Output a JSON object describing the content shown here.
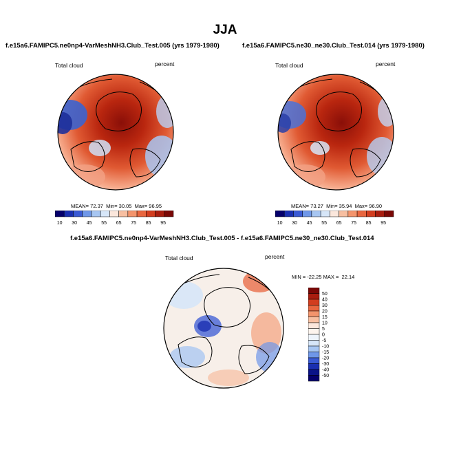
{
  "page": {
    "title": "JJA"
  },
  "panels": [
    {
      "title": "f.e15a6.FAMIPC5.ne0np4-VarMeshNH3.Club_Test.005 (yrs 1979-1980)",
      "left_label": "Total cloud",
      "right_label": "percent",
      "stats": {
        "mean_label": "MEAN=",
        "mean": "72.37",
        "min_label": "Min=",
        "min": "30.05",
        "max_label": "Max=",
        "max": "96.95"
      }
    },
    {
      "title": "f.e15a6.FAMIPC5.ne30_ne30.Club_Test.014 (yrs 1979-1980)",
      "left_label": "Total cloud",
      "right_label": "percent",
      "stats": {
        "mean_label": "MEAN=",
        "mean": "73.27",
        "min_label": "Min=",
        "min": "35.94",
        "max_label": "Max=",
        "max": "96.90"
      }
    },
    {
      "title": "f.e15a6.FAMIPC5.ne0np4-VarMeshNH3.Club_Test.005 - f.e15a6.FAMIPC5.ne30_ne30.Club_Test.014",
      "left_label": "Total cloud",
      "right_label": "percent",
      "stats_text": "MIN = -22.25 MAX =  22.14"
    }
  ],
  "chart_data": [
    {
      "type": "heatmap",
      "title": "f.e15a6.FAMIPC5.ne0np4-VarMeshNH3.Club_Test.005 (yrs 1979-1980)",
      "variable": "Total cloud",
      "units": "percent",
      "projection": "north polar stereographic",
      "colorbar": {
        "orientation": "horizontal",
        "tick_labels": [
          "10",
          "30",
          "45",
          "55",
          "65",
          "75",
          "85",
          "95"
        ],
        "colors": [
          "#05006b",
          "#1a2fb0",
          "#3a5ad4",
          "#6f97e8",
          "#a7c6f2",
          "#d6e6f8",
          "#fbe7dc",
          "#f7bfa1",
          "#f3946c",
          "#e8663f",
          "#d23d1f",
          "#a81d0f",
          "#7a0806"
        ]
      },
      "mean": 72.37,
      "min": 30.05,
      "max": 96.95
    },
    {
      "type": "heatmap",
      "title": "f.e15a6.FAMIPC5.ne30_ne30.Club_Test.014 (yrs 1979-1980)",
      "variable": "Total cloud",
      "units": "percent",
      "projection": "north polar stereographic",
      "colorbar": {
        "orientation": "horizontal",
        "tick_labels": [
          "10",
          "30",
          "45",
          "55",
          "65",
          "75",
          "85",
          "95"
        ],
        "colors": [
          "#05006b",
          "#1a2fb0",
          "#3a5ad4",
          "#6f97e8",
          "#a7c6f2",
          "#d6e6f8",
          "#fbe7dc",
          "#f7bfa1",
          "#f3946c",
          "#e8663f",
          "#d23d1f",
          "#a81d0f",
          "#7a0806"
        ]
      },
      "mean": 73.27,
      "min": 35.94,
      "max": 96.9
    },
    {
      "type": "heatmap",
      "title": "f.e15a6.FAMIPC5.ne0np4-VarMeshNH3.Club_Test.005 - f.e15a6.FAMIPC5.ne30_ne30.Club_Test.014",
      "variable": "Total cloud",
      "units": "percent",
      "projection": "north polar stereographic",
      "colorbar": {
        "orientation": "vertical",
        "tick_labels": [
          "50",
          "40",
          "30",
          "20",
          "15",
          "10",
          "5",
          "0",
          "-5",
          "-10",
          "-15",
          "-20",
          "-30",
          "-40",
          "-50"
        ],
        "colors": [
          "#7a0806",
          "#a81d0f",
          "#d23d1f",
          "#e8663f",
          "#f3946c",
          "#f7bfa1",
          "#fbe7dc",
          "#fdf4ee",
          "#eef4fc",
          "#d6e6f8",
          "#a7c6f2",
          "#6f97e8",
          "#3a5ad4",
          "#1a2fb0",
          "#0a1388",
          "#05006b"
        ]
      },
      "min": -22.25,
      "max": 22.14
    }
  ]
}
